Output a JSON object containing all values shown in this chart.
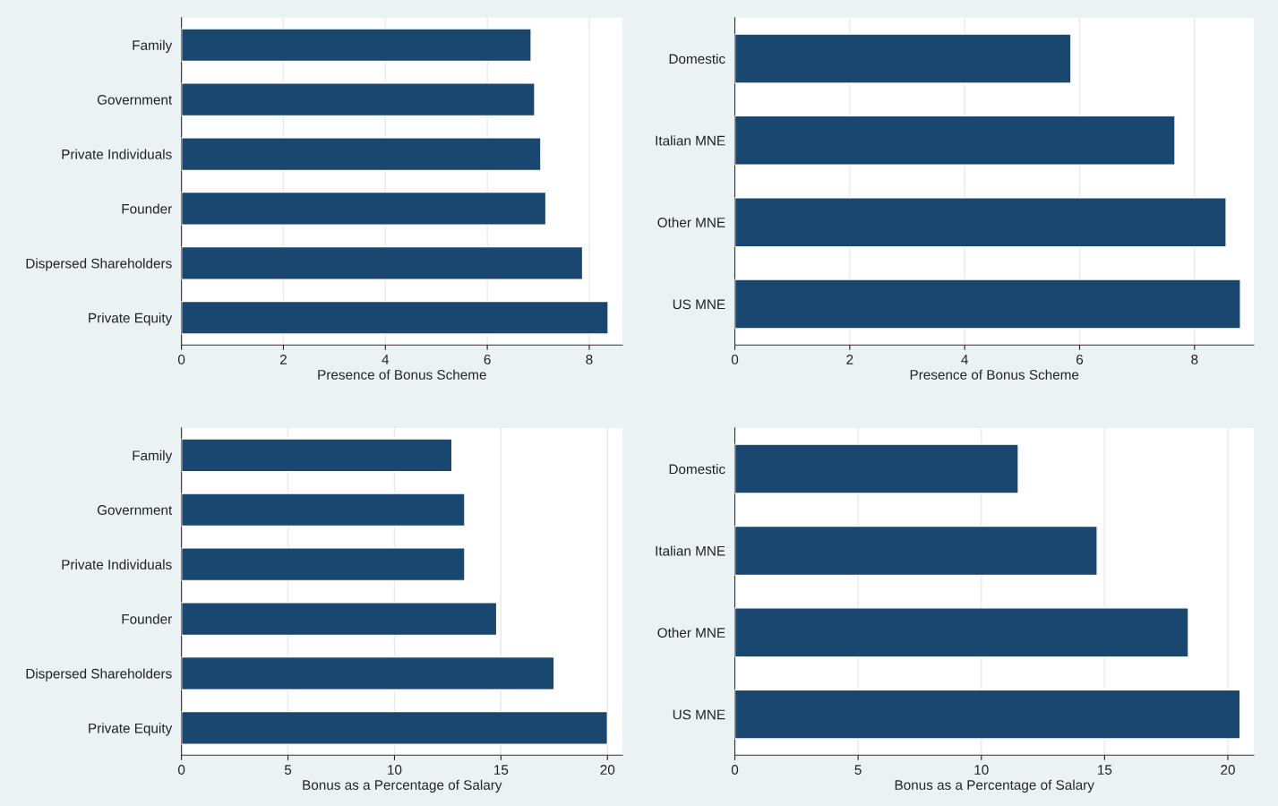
{
  "chart_data": [
    {
      "type": "bar",
      "orientation": "horizontal",
      "xlabel": "Presence of Bonus Scheme",
      "categories": [
        "Family",
        "Government",
        "Private Individuals",
        "Founder",
        "Dispersed Shareholders",
        "Private Equity"
      ],
      "values": [
        6.86,
        6.93,
        7.05,
        7.15,
        7.87,
        8.37
      ],
      "color": "#1a476f",
      "xlim": [
        0,
        8.65
      ],
      "xticks": [
        0,
        2,
        4,
        6,
        8
      ],
      "grid": "x"
    },
    {
      "type": "bar",
      "orientation": "horizontal",
      "xlabel": "Presence of Bonus Scheme",
      "categories": [
        "Domestic",
        "Italian MNE",
        "Other MNE",
        "US MNE"
      ],
      "values": [
        5.85,
        7.66,
        8.55,
        8.8
      ],
      "color": "#1a476f",
      "xlim": [
        0,
        9.03
      ],
      "xticks": [
        0,
        2,
        4,
        6,
        8
      ],
      "grid": "x"
    },
    {
      "type": "bar",
      "orientation": "horizontal",
      "xlabel": "Bonus as a Percentage of Salary",
      "categories": [
        "Family",
        "Government",
        "Private Individuals",
        "Founder",
        "Dispersed Shareholders",
        "Private Equity"
      ],
      "values": [
        12.7,
        13.3,
        13.3,
        14.8,
        17.5,
        20.0
      ],
      "color": "#1a476f",
      "xlim": [
        0,
        20.7
      ],
      "xticks": [
        0,
        5,
        10,
        15,
        20
      ],
      "grid": "x"
    },
    {
      "type": "bar",
      "orientation": "horizontal",
      "xlabel": "Bonus as a Percentage of Salary",
      "categories": [
        "Domestic",
        "Italian MNE",
        "Other MNE",
        "US MNE"
      ],
      "values": [
        11.5,
        14.7,
        18.4,
        20.5
      ],
      "color": "#1a476f",
      "xlim": [
        0,
        21.05
      ],
      "xticks": [
        0,
        5,
        10,
        15,
        20
      ],
      "grid": "x"
    }
  ]
}
